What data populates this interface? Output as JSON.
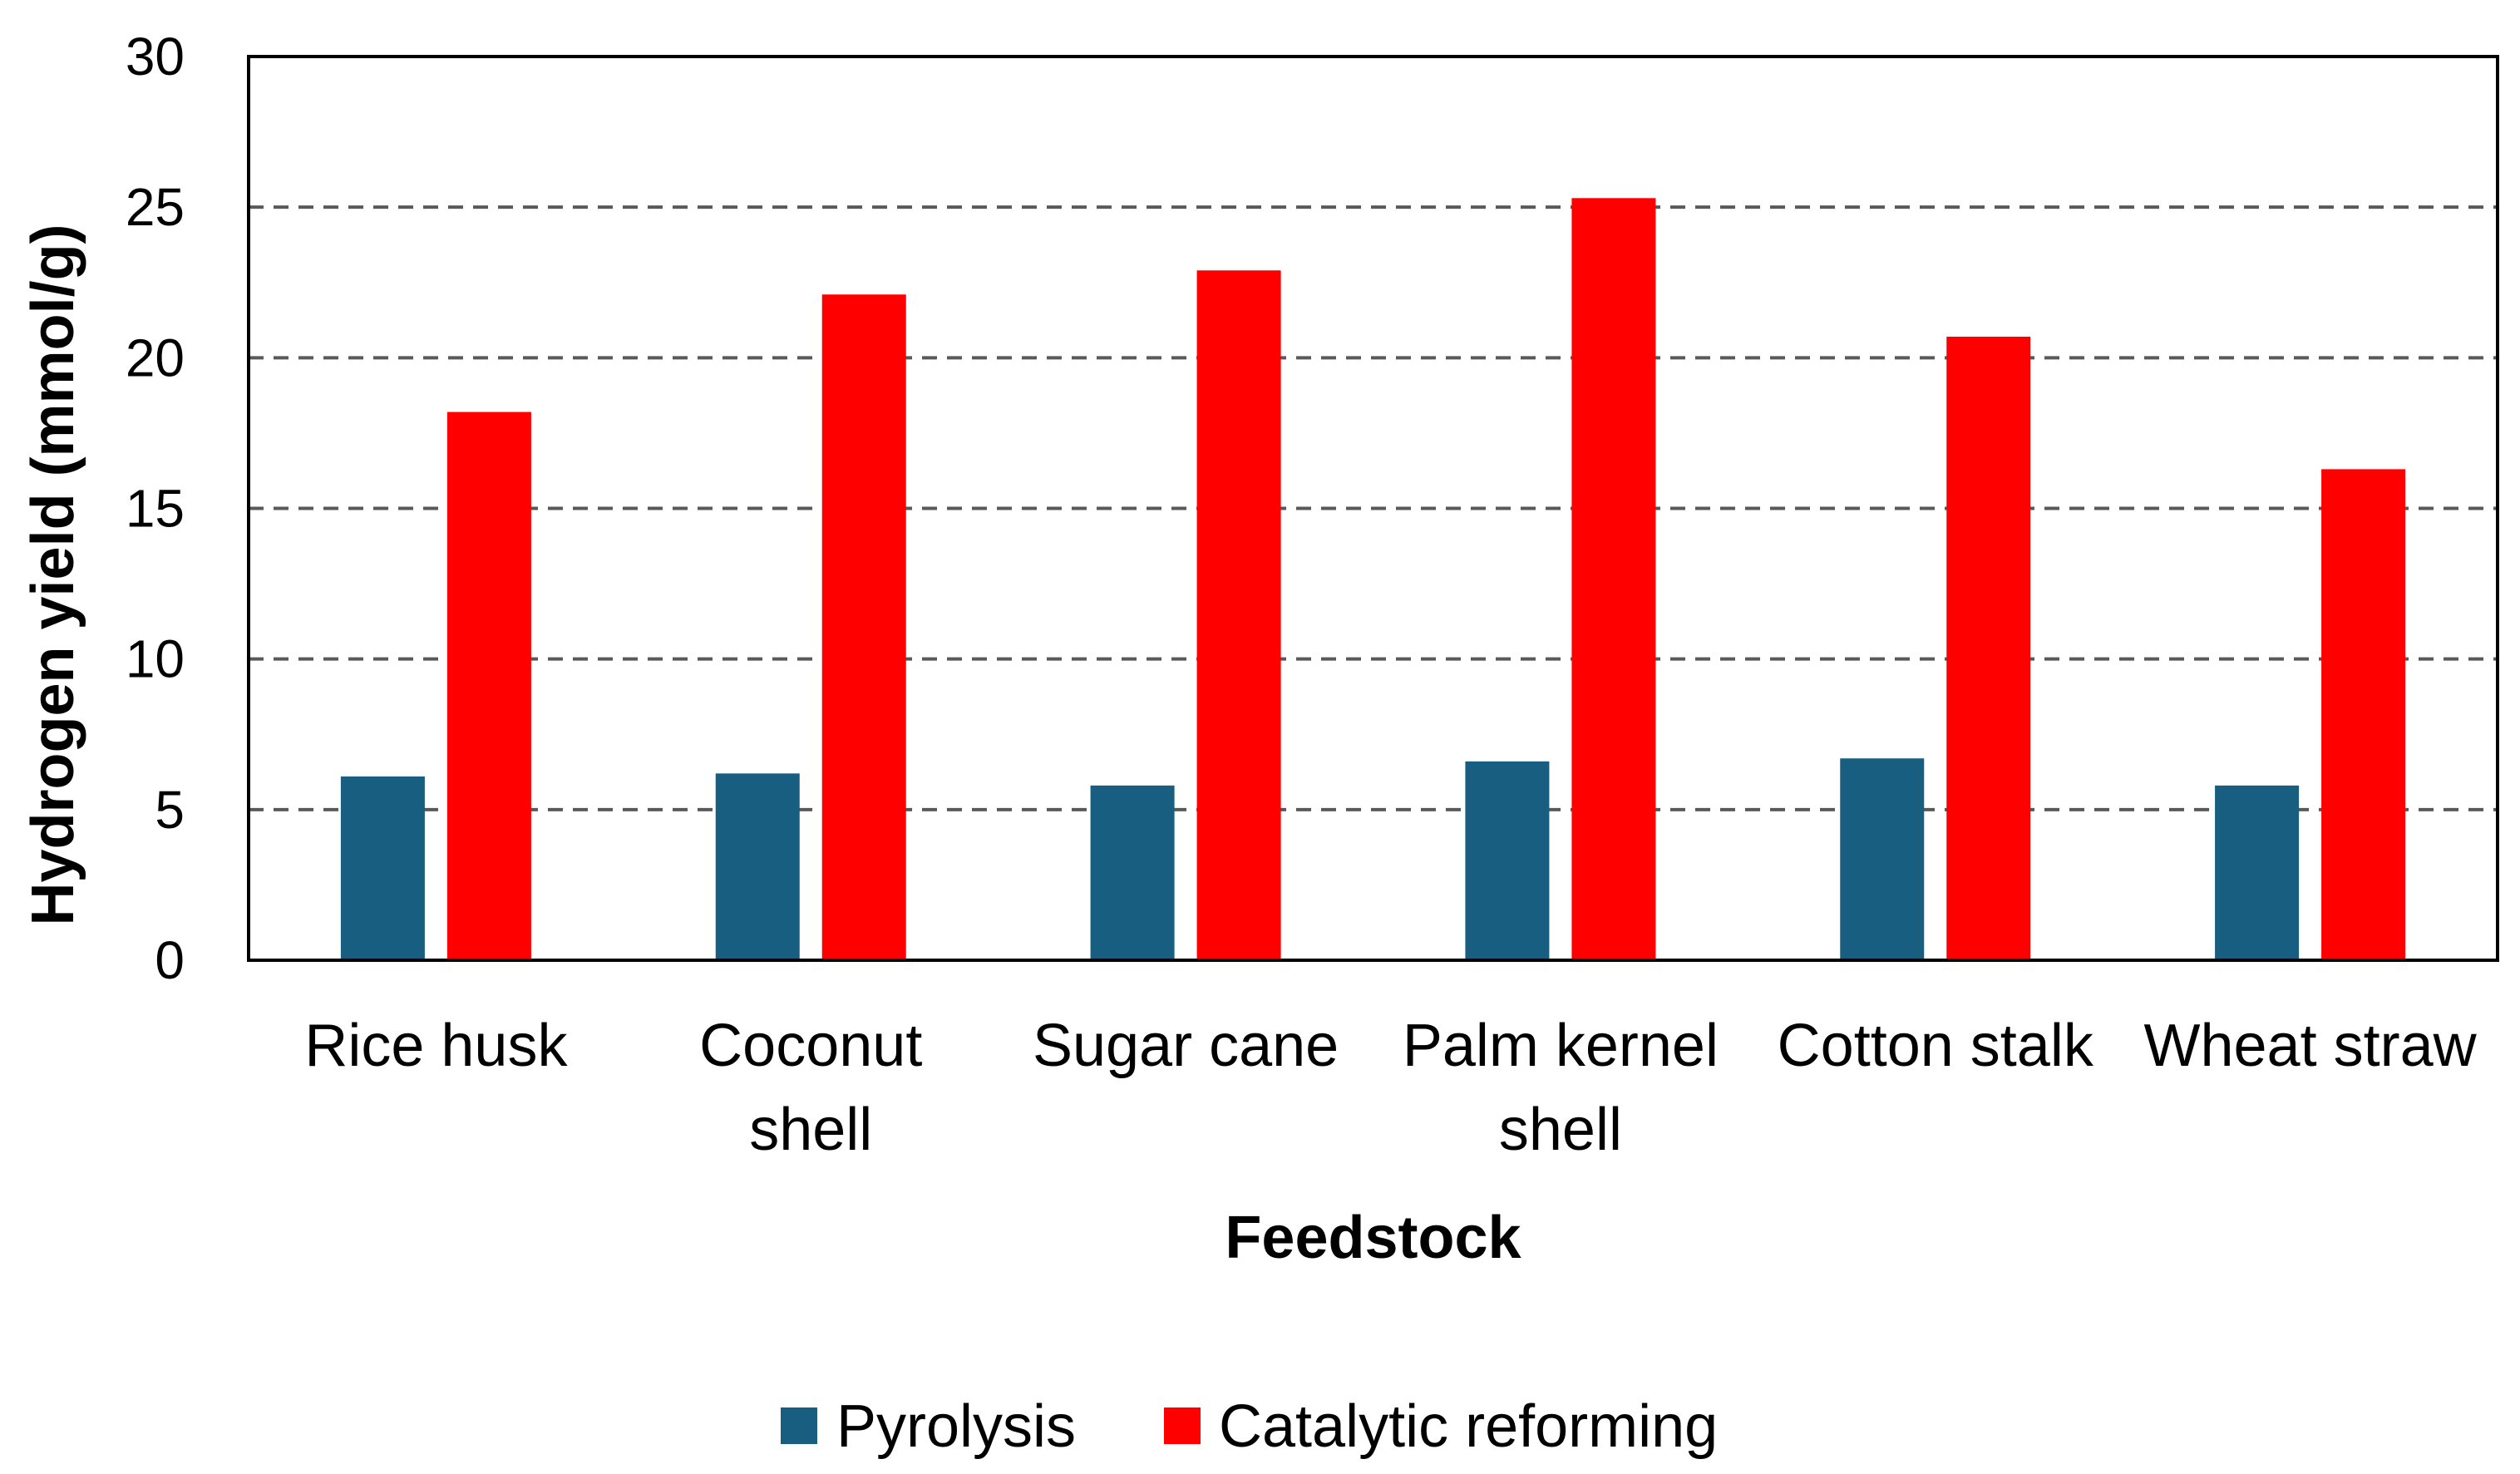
{
  "chart_data": {
    "type": "bar",
    "title": "",
    "xlabel": "Feedstock",
    "ylabel": "Hydrogen yield (mmol/g)",
    "ylim": [
      0,
      30
    ],
    "yticks": [
      0,
      5,
      10,
      15,
      20,
      25,
      30
    ],
    "grid": "horizontal dashed",
    "legend_position": "bottom",
    "categories": [
      [
        "Rice husk"
      ],
      [
        "Coconut",
        "shell"
      ],
      [
        "Sugar cane"
      ],
      [
        "Palm kernel",
        "shell"
      ],
      [
        "Cotton stalk"
      ],
      [
        "Wheat straw"
      ]
    ],
    "series": [
      {
        "name": "Pyrolysis",
        "color": "#185E80",
        "values": [
          6.1,
          6.2,
          5.8,
          6.6,
          6.7,
          5.8
        ]
      },
      {
        "name": "Catalytic reforming",
        "color": "#FF0000",
        "values": [
          18.2,
          22.1,
          22.9,
          25.3,
          20.7,
          16.3
        ]
      }
    ]
  }
}
